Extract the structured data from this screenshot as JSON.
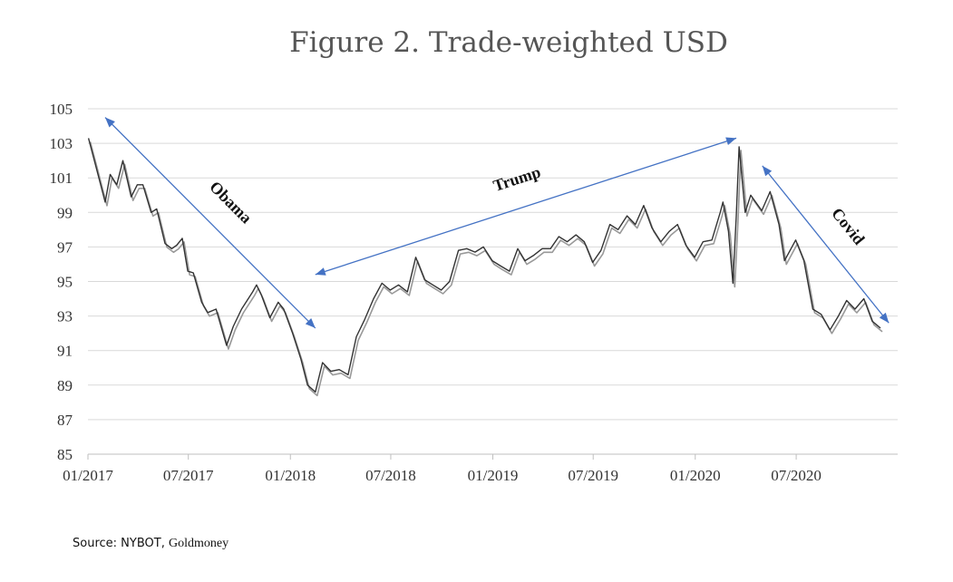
{
  "source": {
    "label": "Source: NYBOT,",
    "name": "Goldmoney"
  },
  "chart_data": {
    "type": "line",
    "title": "Figure 2. Trade-weighted USD",
    "xlabel": "",
    "ylabel": "",
    "ylim": [
      85,
      105
    ],
    "yticks": [
      85,
      87,
      89,
      91,
      93,
      95,
      97,
      99,
      101,
      103,
      105
    ],
    "xlim": [
      "2017-01-01",
      "2020-11-30"
    ],
    "xticks": [
      "01/2017",
      "07/2017",
      "01/2018",
      "07/2018",
      "01/2019",
      "07/2019",
      "01/2020",
      "07/2020"
    ],
    "grid": true,
    "legend": "none",
    "series": [
      {
        "points": [
          [
            "2017-01-02",
            103.3
          ],
          [
            "2017-01-15",
            101.7
          ],
          [
            "2017-02-01",
            99.6
          ],
          [
            "2017-02-10",
            101.2
          ],
          [
            "2017-02-22",
            100.6
          ],
          [
            "2017-03-05",
            102.0
          ],
          [
            "2017-03-20",
            99.9
          ],
          [
            "2017-03-31",
            100.6
          ],
          [
            "2017-04-10",
            100.6
          ],
          [
            "2017-04-25",
            99.0
          ],
          [
            "2017-05-05",
            99.2
          ],
          [
            "2017-05-20",
            97.2
          ],
          [
            "2017-06-01",
            96.9
          ],
          [
            "2017-06-10",
            97.1
          ],
          [
            "2017-06-20",
            97.5
          ],
          [
            "2017-06-30",
            95.6
          ],
          [
            "2017-07-10",
            95.5
          ],
          [
            "2017-07-25",
            93.8
          ],
          [
            "2017-08-05",
            93.2
          ],
          [
            "2017-08-20",
            93.4
          ],
          [
            "2017-09-08",
            91.3
          ],
          [
            "2017-09-20",
            92.4
          ],
          [
            "2017-10-05",
            93.4
          ],
          [
            "2017-10-25",
            94.4
          ],
          [
            "2017-11-01",
            94.8
          ],
          [
            "2017-11-10",
            94.2
          ],
          [
            "2017-11-25",
            92.9
          ],
          [
            "2017-12-10",
            93.8
          ],
          [
            "2017-12-20",
            93.4
          ],
          [
            "2018-01-05",
            92.0
          ],
          [
            "2018-01-20",
            90.5
          ],
          [
            "2018-02-01",
            89.0
          ],
          [
            "2018-02-15",
            88.6
          ],
          [
            "2018-02-28",
            90.3
          ],
          [
            "2018-03-15",
            89.8
          ],
          [
            "2018-03-30",
            89.9
          ],
          [
            "2018-04-15",
            89.6
          ],
          [
            "2018-04-30",
            91.8
          ],
          [
            "2018-05-15",
            92.8
          ],
          [
            "2018-05-31",
            94.0
          ],
          [
            "2018-06-15",
            94.9
          ],
          [
            "2018-06-30",
            94.5
          ],
          [
            "2018-07-15",
            94.8
          ],
          [
            "2018-07-31",
            94.4
          ],
          [
            "2018-08-15",
            96.4
          ],
          [
            "2018-08-31",
            95.1
          ],
          [
            "2018-09-15",
            94.8
          ],
          [
            "2018-09-30",
            94.5
          ],
          [
            "2018-10-15",
            95.0
          ],
          [
            "2018-10-31",
            96.8
          ],
          [
            "2018-11-15",
            96.9
          ],
          [
            "2018-11-30",
            96.7
          ],
          [
            "2018-12-15",
            97.0
          ],
          [
            "2018-12-31",
            96.2
          ],
          [
            "2019-01-15",
            95.9
          ],
          [
            "2019-01-31",
            95.6
          ],
          [
            "2019-02-15",
            96.9
          ],
          [
            "2019-02-28",
            96.2
          ],
          [
            "2019-03-15",
            96.5
          ],
          [
            "2019-03-31",
            96.9
          ],
          [
            "2019-04-15",
            96.9
          ],
          [
            "2019-04-30",
            97.6
          ],
          [
            "2019-05-15",
            97.3
          ],
          [
            "2019-05-31",
            97.7
          ],
          [
            "2019-06-15",
            97.3
          ],
          [
            "2019-06-30",
            96.1
          ],
          [
            "2019-07-15",
            96.8
          ],
          [
            "2019-07-31",
            98.3
          ],
          [
            "2019-08-15",
            98.0
          ],
          [
            "2019-08-31",
            98.8
          ],
          [
            "2019-09-15",
            98.3
          ],
          [
            "2019-09-30",
            99.4
          ],
          [
            "2019-10-15",
            98.1
          ],
          [
            "2019-10-31",
            97.3
          ],
          [
            "2019-11-15",
            97.9
          ],
          [
            "2019-11-30",
            98.3
          ],
          [
            "2019-12-15",
            97.1
          ],
          [
            "2019-12-31",
            96.4
          ],
          [
            "2020-01-15",
            97.3
          ],
          [
            "2020-01-31",
            97.4
          ],
          [
            "2020-02-15",
            99.0
          ],
          [
            "2020-02-20",
            99.6
          ],
          [
            "2020-03-01",
            97.9
          ],
          [
            "2020-03-09",
            94.9
          ],
          [
            "2020-03-15",
            98.8
          ],
          [
            "2020-03-20",
            102.8
          ],
          [
            "2020-03-31",
            99.0
          ],
          [
            "2020-04-10",
            100.0
          ],
          [
            "2020-04-30",
            99.1
          ],
          [
            "2020-05-15",
            100.2
          ],
          [
            "2020-05-31",
            98.3
          ],
          [
            "2020-06-10",
            96.2
          ],
          [
            "2020-06-30",
            97.4
          ],
          [
            "2020-07-15",
            96.2
          ],
          [
            "2020-07-31",
            93.4
          ],
          [
            "2020-08-15",
            93.1
          ],
          [
            "2020-08-31",
            92.2
          ],
          [
            "2020-09-15",
            93.0
          ],
          [
            "2020-09-30",
            93.9
          ],
          [
            "2020-10-15",
            93.4
          ],
          [
            "2020-10-31",
            94.0
          ],
          [
            "2020-11-15",
            92.7
          ],
          [
            "2020-11-30",
            92.3
          ]
        ]
      }
    ],
    "annotations": [
      {
        "text": "Obama",
        "from": [
          "2017-02-01",
          104.5
        ],
        "to": [
          "2018-02-15",
          92.3
        ]
      },
      {
        "text": "Trump",
        "from": [
          "2018-02-15",
          95.4
        ],
        "to": [
          "2020-03-15",
          103.3
        ]
      },
      {
        "text": "Covid",
        "from": [
          "2020-05-01",
          101.7
        ],
        "to": [
          "2020-12-15",
          92.6
        ]
      }
    ],
    "colors": {
      "line": "#333333",
      "shadow": "#999999",
      "arrow": "#4472c4",
      "grid": "#d9d9d9"
    }
  }
}
